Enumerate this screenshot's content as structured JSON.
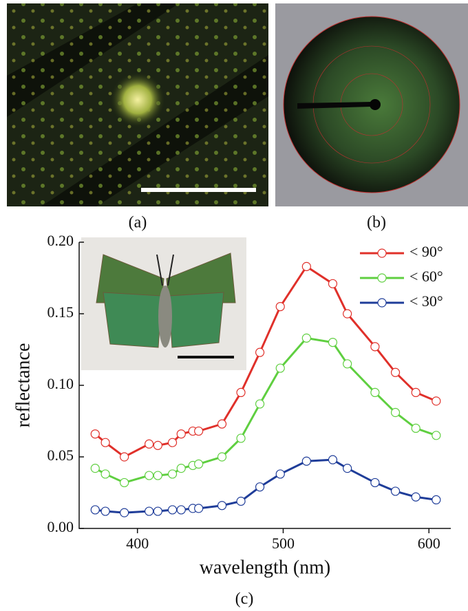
{
  "panel_labels": [
    "(a)",
    "(b)",
    "(c)"
  ],
  "chart_data": {
    "type": "line",
    "xlabel": "wavelength (nm)",
    "ylabel": "reflectance",
    "x": [
      371,
      378,
      391,
      408,
      414,
      424,
      430,
      438,
      442,
      458,
      471,
      484,
      498,
      516,
      534,
      544,
      563,
      577,
      591,
      605
    ],
    "series": [
      {
        "name": "< 90°",
        "color": "#e0302a",
        "values": [
          0.066,
          0.06,
          0.05,
          0.059,
          0.058,
          0.06,
          0.066,
          0.068,
          0.068,
          0.073,
          0.095,
          0.123,
          0.155,
          0.183,
          0.171,
          0.15,
          0.127,
          0.109,
          0.095,
          0.089
        ]
      },
      {
        "name": "< 60°",
        "color": "#5fcf40",
        "values": [
          0.042,
          0.038,
          0.032,
          0.037,
          0.037,
          0.038,
          0.042,
          0.044,
          0.045,
          0.05,
          0.063,
          0.087,
          0.112,
          0.133,
          0.13,
          0.115,
          0.095,
          0.081,
          0.07,
          0.065
        ]
      },
      {
        "name": "< 30°",
        "color": "#1f3d99",
        "values": [
          0.013,
          0.012,
          0.011,
          0.012,
          0.012,
          0.013,
          0.013,
          0.014,
          0.014,
          0.016,
          0.019,
          0.029,
          0.038,
          0.047,
          0.048,
          0.042,
          0.032,
          0.026,
          0.022,
          0.02
        ]
      }
    ],
    "xlim": [
      360,
      615
    ],
    "xticks": [
      400,
      500,
      600
    ],
    "ylim": [
      0,
      0.2
    ],
    "yticks": [
      {
        "value": 0,
        "label": "0.00"
      },
      {
        "value": 0.05,
        "label": "0.05"
      },
      {
        "value": 0.1,
        "label": "0.10"
      },
      {
        "value": 0.15,
        "label": "0.15"
      },
      {
        "value": 0.2,
        "label": "0.20"
      }
    ],
    "legend": "upper right"
  }
}
